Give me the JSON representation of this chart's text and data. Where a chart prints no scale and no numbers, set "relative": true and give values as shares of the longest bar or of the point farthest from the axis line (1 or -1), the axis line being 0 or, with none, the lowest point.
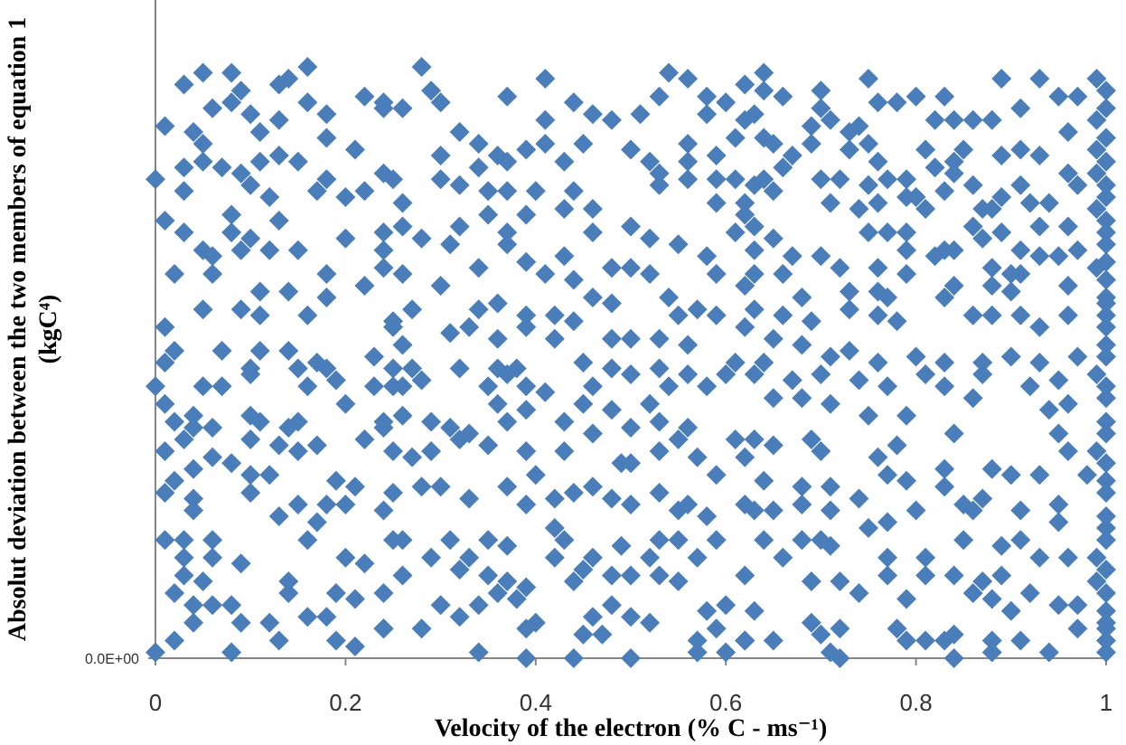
{
  "chart_data": {
    "type": "scatter",
    "xlabel": "Velocity of the electron (% C - ms⁻¹)",
    "ylabel": "Absolut deviation between the two members of equation 1\n(kgC⁴)",
    "relative": true,
    "xlim": [
      0,
      1
    ],
    "xticks": [
      0,
      0.2,
      0.4,
      0.6,
      0.8,
      1
    ],
    "annotations": [
      "0.0E+00"
    ],
    "marker": "diamond",
    "series": [
      {
        "color": "#4a7ebb",
        "x": [
          0.03,
          0.05,
          0.08,
          0.09,
          0.06,
          0.08,
          0.01,
          0.04,
          0.05,
          0.1,
          0.11,
          0.13,
          0.13,
          0.14,
          0.16,
          0.16,
          0.18,
          0.18,
          0.21,
          0.22,
          0.24,
          0.0,
          0.03,
          0.03,
          0.05,
          0.07,
          0.09,
          0.11,
          0.13,
          0.15,
          0.12,
          0.1,
          0.01,
          0.03,
          0.08,
          0.08,
          0.1,
          0.13,
          0.17,
          0.18,
          0.2,
          0.22,
          0.24,
          0.05,
          0.06,
          0.02,
          0.06,
          0.09,
          0.12,
          0.15,
          0.2,
          0.18,
          0.22,
          0.24,
          0.11,
          0.14,
          0.05,
          0.09,
          0.11,
          0.16,
          0.18,
          0.01,
          0.02,
          0.07,
          0.11,
          0.14,
          0.17,
          0.18,
          0.23,
          0.25,
          0.01,
          0.1,
          0.0,
          0.05,
          0.07,
          0.1,
          0.15,
          0.16,
          0.19,
          0.2,
          0.23,
          0.25,
          0.01,
          0.02,
          0.04,
          0.06,
          0.01,
          0.03,
          0.04,
          0.1,
          0.11,
          0.1,
          0.14,
          0.15,
          0.13,
          0.15,
          0.17,
          0.22,
          0.24,
          0.06,
          0.08,
          0.1,
          0.12,
          0.1,
          0.04,
          0.01,
          0.02,
          0.04,
          0.04,
          0.13,
          0.15,
          0.17,
          0.18,
          0.16,
          0.19,
          0.21,
          0.2,
          0.24,
          0.01,
          0.03,
          0.06,
          0.03,
          0.06,
          0.09,
          0.03,
          0.05,
          0.02,
          0.14,
          0.14,
          0.2,
          0.22,
          0.19,
          0.21,
          0.24,
          0.04,
          0.06,
          0.08,
          0.09,
          0.04,
          0.12,
          0.13,
          0.16,
          0.18,
          0.24,
          0.02,
          0.0,
          0.08,
          0.19,
          0.21,
          0.28,
          0.24,
          0.26,
          0.29,
          0.3,
          0.37,
          0.41,
          0.41,
          0.44,
          0.46,
          0.48,
          0.51,
          0.53,
          0.54,
          0.56,
          0.58,
          0.6,
          0.62,
          0.62,
          0.58,
          0.3,
          0.32,
          0.34,
          0.36,
          0.37,
          0.39,
          0.41,
          0.43,
          0.45,
          0.5,
          0.52,
          0.56,
          0.56,
          0.59,
          0.61,
          0.64,
          0.25,
          0.3,
          0.32,
          0.34,
          0.35,
          0.37,
          0.4,
          0.44,
          0.46,
          0.53,
          0.53,
          0.56,
          0.59,
          0.61,
          0.63,
          0.26,
          0.24,
          0.26,
          0.28,
          0.32,
          0.35,
          0.37,
          0.39,
          0.43,
          0.46,
          0.5,
          0.52,
          0.55,
          0.59,
          0.61,
          0.62,
          0.24,
          0.31,
          0.34,
          0.37,
          0.39,
          0.43,
          0.48,
          0.5,
          0.52,
          0.59,
          0.62,
          0.26,
          0.3,
          0.41,
          0.44,
          0.46,
          0.54,
          0.58,
          0.25,
          0.27,
          0.34,
          0.36,
          0.39,
          0.42,
          0.44,
          0.48,
          0.55,
          0.57,
          0.59,
          0.62,
          0.26,
          0.31,
          0.33,
          0.36,
          0.39,
          0.42,
          0.48,
          0.5,
          0.53,
          0.56,
          0.61,
          0.32,
          0.36,
          0.38,
          0.45,
          0.48,
          0.53,
          0.25,
          0.27,
          0.26,
          0.28,
          0.35,
          0.37,
          0.39,
          0.41,
          0.46,
          0.5,
          0.52,
          0.54,
          0.56,
          0.58,
          0.6,
          0.24,
          0.26,
          0.29,
          0.31,
          0.33,
          0.36,
          0.37,
          0.39,
          0.43,
          0.45,
          0.48,
          0.5,
          0.53,
          0.55,
          0.56,
          0.61,
          0.25,
          0.27,
          0.29,
          0.32,
          0.35,
          0.39,
          0.4,
          0.43,
          0.46,
          0.49,
          0.5,
          0.53,
          0.57,
          0.59,
          0.62,
          0.25,
          0.28,
          0.3,
          0.33,
          0.37,
          0.39,
          0.42,
          0.44,
          0.46,
          0.48,
          0.5,
          0.53,
          0.55,
          0.56,
          0.58,
          0.62,
          0.25,
          0.26,
          0.29,
          0.31,
          0.33,
          0.35,
          0.37,
          0.42,
          0.43,
          0.42,
          0.46,
          0.49,
          0.52,
          0.53,
          0.55,
          0.57,
          0.59,
          0.26,
          0.32,
          0.35,
          0.37,
          0.39,
          0.44,
          0.45,
          0.48,
          0.5,
          0.53,
          0.55,
          0.3,
          0.32,
          0.34,
          0.36,
          0.38,
          0.4,
          0.46,
          0.48,
          0.5,
          0.52,
          0.58,
          0.6,
          0.24,
          0.28,
          0.39,
          0.45,
          0.47,
          0.57,
          0.59,
          0.62,
          0.34,
          0.39,
          0.44,
          0.5,
          0.57,
          0.6,
          0.64,
          0.64,
          0.66,
          0.63,
          0.7,
          0.7,
          0.75,
          0.76,
          0.78,
          0.8,
          0.83,
          0.82,
          0.84,
          0.86,
          0.89,
          0.88,
          0.91,
          0.93,
          0.95,
          0.97,
          0.99,
          0.96,
          0.99,
          0.69,
          0.71,
          0.73,
          0.74,
          0.75,
          0.65,
          0.67,
          0.69,
          0.73,
          0.76,
          0.81,
          0.82,
          0.84,
          0.85,
          0.89,
          0.91,
          0.93,
          0.99,
          0.99,
          0.64,
          0.66,
          0.7,
          0.72,
          0.75,
          0.77,
          0.79,
          0.8,
          0.83,
          0.84,
          0.86,
          0.89,
          0.91,
          0.96,
          0.97,
          1,
          0.62,
          0.65,
          0.71,
          0.74,
          0.76,
          0.79,
          0.81,
          0.87,
          0.88,
          0.92,
          0.94,
          0.99,
          0.63,
          0.65,
          0.75,
          0.77,
          0.79,
          0.83,
          0.84,
          0.86,
          0.87,
          0.89,
          0.91,
          0.93,
          0.96,
          1,
          0.63,
          0.67,
          0.7,
          0.72,
          0.76,
          0.79,
          0.82,
          0.88,
          0.9,
          0.93,
          0.95,
          0.97,
          0.99,
          0.63,
          0.66,
          0.73,
          0.76,
          0.77,
          0.79,
          0.84,
          0.83,
          0.88,
          0.9,
          0.91,
          0.96,
          1,
          0.63,
          0.68,
          0.66,
          0.69,
          0.73,
          0.76,
          0.78,
          0.86,
          0.88,
          0.91,
          0.93,
          0.96,
          1,
          0.65,
          0.68,
          0.71,
          0.73,
          0.76,
          0.8,
          0.83,
          0.87,
          0.9,
          0.93,
          0.97,
          1,
          0.64,
          0.63,
          0.67,
          0.7,
          0.74,
          0.77,
          0.81,
          0.83,
          0.87,
          0.92,
          0.95,
          0.99,
          0.65,
          0.68,
          0.71,
          0.75,
          0.79,
          0.84,
          0.86,
          0.94,
          0.96,
          1,
          0.63,
          0.65,
          0.69,
          0.7,
          0.76,
          0.78,
          0.83,
          0.88,
          0.9,
          0.93,
          0.95,
          0.96,
          0.99,
          0.98,
          0.64,
          0.68,
          0.71,
          0.74,
          0.77,
          0.79,
          0.83,
          0.85,
          0.87,
          0.91,
          0.95,
          1,
          0.63,
          0.65,
          0.68,
          0.71,
          0.77,
          0.8,
          0.86,
          0.91,
          0.95,
          1,
          0.64,
          0.68,
          0.7,
          0.75,
          0.81,
          0.85,
          0.89,
          0.93,
          0.96,
          0.99,
          0.66,
          0.71,
          0.77,
          0.77,
          0.81,
          0.84,
          0.87,
          0.89,
          0.99,
          0.62,
          0.69,
          0.72,
          0.74,
          0.79,
          0.86,
          0.88,
          0.9,
          0.92,
          0.95,
          0.97,
          1,
          0.63,
          0.69,
          0.7,
          0.72,
          0.78,
          0.83,
          0.84,
          0.88,
          0.91,
          0.97,
          1,
          0.62,
          0.65,
          0.71,
          0.72,
          0.81,
          0.84,
          0.88,
          0.94,
          1,
          0.79,
          1,
          1,
          1,
          1,
          1,
          1,
          1,
          1,
          1,
          1,
          1,
          1,
          1,
          1,
          1,
          1,
          1,
          1,
          1,
          1,
          1,
          1,
          1
        ],
        "values": [
          0.97,
          0.99,
          0.99,
          0.96,
          0.93,
          0.94,
          0.9,
          0.89,
          0.87,
          0.92,
          0.89,
          0.91,
          0.97,
          0.98,
          1,
          0.94,
          0.92,
          0.88,
          0.86,
          0.95,
          0.93,
          0.81,
          0.83,
          0.79,
          0.84,
          0.83,
          0.82,
          0.84,
          0.85,
          0.84,
          0.78,
          0.8,
          0.74,
          0.72,
          0.75,
          0.72,
          0.71,
          0.74,
          0.79,
          0.81,
          0.78,
          0.79,
          0.82,
          0.69,
          0.68,
          0.65,
          0.65,
          0.69,
          0.69,
          0.69,
          0.71,
          0.65,
          0.63,
          0.66,
          0.62,
          0.62,
          0.59,
          0.59,
          0.58,
          0.58,
          0.61,
          0.56,
          0.52,
          0.52,
          0.52,
          0.52,
          0.5,
          0.49,
          0.51,
          0.56,
          0.5,
          0.49,
          0.46,
          0.46,
          0.46,
          0.48,
          0.49,
          0.46,
          0.47,
          0.43,
          0.46,
          0.46,
          0.43,
          0.4,
          0.41,
          0.39,
          0.35,
          0.37,
          0.39,
          0.41,
          0.4,
          0.37,
          0.39,
          0.4,
          0.36,
          0.35,
          0.36,
          0.37,
          0.39,
          0.34,
          0.33,
          0.31,
          0.31,
          0.28,
          0.32,
          0.28,
          0.3,
          0.27,
          0.25,
          0.24,
          0.26,
          0.23,
          0.26,
          0.2,
          0.3,
          0.29,
          0.26,
          0.25,
          0.2,
          0.2,
          0.2,
          0.17,
          0.17,
          0.16,
          0.14,
          0.13,
          0.11,
          0.13,
          0.11,
          0.17,
          0.16,
          0.11,
          0.1,
          0.11,
          0.09,
          0.09,
          0.09,
          0.06,
          0.06,
          0.06,
          0.03,
          0.07,
          0.07,
          0.05,
          0.03,
          0.01,
          0.01,
          0.03,
          0.02,
          1,
          0.94,
          0.93,
          0.96,
          0.94,
          0.95,
          0.98,
          0.91,
          0.94,
          0.92,
          0.91,
          0.92,
          0.95,
          0.99,
          0.98,
          0.95,
          0.94,
          0.97,
          0.91,
          0.92,
          0.85,
          0.89,
          0.87,
          0.85,
          0.84,
          0.86,
          0.87,
          0.84,
          0.87,
          0.86,
          0.84,
          0.87,
          0.84,
          0.85,
          0.88,
          0.88,
          0.81,
          0.81,
          0.8,
          0.83,
          0.79,
          0.79,
          0.79,
          0.79,
          0.76,
          0.8,
          0.82,
          0.81,
          0.81,
          0.81,
          0.8,
          0.77,
          0.72,
          0.73,
          0.71,
          0.73,
          0.75,
          0.72,
          0.75,
          0.76,
          0.72,
          0.73,
          0.71,
          0.7,
          0.77,
          0.72,
          0.75,
          0.69,
          0.7,
          0.66,
          0.7,
          0.67,
          0.68,
          0.66,
          0.66,
          0.65,
          0.65,
          0.63,
          0.65,
          0.63,
          0.65,
          0.64,
          0.61,
          0.61,
          0.68,
          0.57,
          0.59,
          0.59,
          0.6,
          0.58,
          0.58,
          0.57,
          0.6,
          0.58,
          0.59,
          0.58,
          0.56,
          0.53,
          0.55,
          0.56,
          0.54,
          0.56,
          0.54,
          0.54,
          0.54,
          0.54,
          0.53,
          0.5,
          0.49,
          0.49,
          0.49,
          0.5,
          0.49,
          0.49,
          0.49,
          0.49,
          0.46,
          0.47,
          0.46,
          0.48,
          0.46,
          0.45,
          0.46,
          0.48,
          0.43,
          0.46,
          0.48,
          0.46,
          0.48,
          0.4,
          0.41,
          0.4,
          0.39,
          0.38,
          0.43,
          0.4,
          0.42,
          0.4,
          0.43,
          0.42,
          0.39,
          0.4,
          0.37,
          0.39,
          0.37,
          0.35,
          0.34,
          0.35,
          0.37,
          0.36,
          0.35,
          0.31,
          0.35,
          0.38,
          0.33,
          0.33,
          0.35,
          0.34,
          0.31,
          0.34,
          0.28,
          0.29,
          0.29,
          0.27,
          0.29,
          0.26,
          0.27,
          0.28,
          0.29,
          0.27,
          0.26,
          0.28,
          0.25,
          0.26,
          0.24,
          0.26,
          0.2,
          0.2,
          0.17,
          0.2,
          0.17,
          0.2,
          0.19,
          0.22,
          0.2,
          0.17,
          0.17,
          0.19,
          0.17,
          0.2,
          0.2,
          0.17,
          0.2,
          0.14,
          0.15,
          0.14,
          0.13,
          0.12,
          0.13,
          0.15,
          0.14,
          0.14,
          0.14,
          0.13,
          0.09,
          0.07,
          0.09,
          0.11,
          0.1,
          0.06,
          0.07,
          0.09,
          0.07,
          0.06,
          0.08,
          0.09,
          0.05,
          0.05,
          0.05,
          0.04,
          0.04,
          0.03,
          0.05,
          0.03,
          0.01,
          0.0,
          0.0,
          0.0,
          0.01,
          0.01,
          0.99,
          0.96,
          0.95,
          0.92,
          0.96,
          0.93,
          0.98,
          0.94,
          0.94,
          0.95,
          0.95,
          0.91,
          0.91,
          0.91,
          0.98,
          0.91,
          0.93,
          0.98,
          0.95,
          0.95,
          0.98,
          0.89,
          0.91,
          0.9,
          0.91,
          0.89,
          0.9,
          0.87,
          0.87,
          0.85,
          0.87,
          0.86,
          0.84,
          0.86,
          0.83,
          0.84,
          0.86,
          0.85,
          0.86,
          0.85,
          0.86,
          0.82,
          0.81,
          0.83,
          0.81,
          0.81,
          0.8,
          0.81,
          0.81,
          0.78,
          0.79,
          0.82,
          0.8,
          0.78,
          0.8,
          0.82,
          0.8,
          0.78,
          0.77,
          0.79,
          0.77,
          0.76,
          0.77,
          0.78,
          0.76,
          0.76,
          0.76,
          0.77,
          0.77,
          0.76,
          0.73,
          0.71,
          0.72,
          0.72,
          0.72,
          0.69,
          0.69,
          0.73,
          0.71,
          0.72,
          0.69,
          0.73,
          0.73,
          0.72,
          0.69,
          0.68,
          0.68,
          0.66,
          0.66,
          0.69,
          0.68,
          0.66,
          0.65,
          0.68,
          0.68,
          0.69,
          0.66,
          0.65,
          0.65,
          0.62,
          0.62,
          0.61,
          0.65,
          0.63,
          0.61,
          0.63,
          0.62,
          0.65,
          0.63,
          0.61,
          0.59,
          0.61,
          0.58,
          0.57,
          0.59,
          0.58,
          0.57,
          0.58,
          0.58,
          0.58,
          0.56,
          0.58,
          0.58,
          0.54,
          0.53,
          0.51,
          0.52,
          0.5,
          0.51,
          0.5,
          0.5,
          0.51,
          0.5,
          0.51,
          0.53,
          0.5,
          0.48,
          0.47,
          0.48,
          0.47,
          0.46,
          0.48,
          0.46,
          0.48,
          0.46,
          0.47,
          0.48,
          0.44,
          0.44,
          0.43,
          0.41,
          0.41,
          0.38,
          0.44,
          0.42,
          0.43,
          0.4,
          0.37,
          0.36,
          0.37,
          0.35,
          0.34,
          0.36,
          0.32,
          0.32,
          0.31,
          0.31,
          0.38,
          0.35,
          0.35,
          0.31,
          0.3,
          0.29,
          0.29,
          0.27,
          0.31,
          0.3,
          0.29,
          0.26,
          0.27,
          0.25,
          0.26,
          0.28,
          0.25,
          0.25,
          0.26,
          0.25,
          0.23,
          0.25,
          0.25,
          0.2,
          0.23,
          0.22,
          0.2,
          0.2,
          0.2,
          0.22,
          0.17,
          0.2,
          0.19,
          0.17,
          0.17,
          0.17,
          0.17,
          0.19,
          0.17,
          0.14,
          0.14,
          0.14,
          0.13,
          0.14,
          0.13,
          0.14,
          0.13,
          0.13,
          0.11,
          0.1,
          0.11,
          0.1,
          0.08,
          0.11,
          0.09,
          0.09,
          0.08,
          0.08,
          0.06,
          0.04,
          0.05,
          0.05,
          0.03,
          0.04,
          0.03,
          0.03,
          0.05,
          0.03,
          0.03,
          0.03,
          0.01,
          0.0,
          0.03,
          0.0,
          0.01,
          0.01,
          0.01,
          0.03,
          0.96,
          0.93,
          0.88,
          0.84,
          0.8,
          0.74,
          0.7,
          0.67,
          0.64,
          0.6,
          0.56,
          0.51,
          0.46,
          0.44,
          0.38,
          0.33,
          0.3,
          0.24,
          0.2,
          0.15,
          0.11,
          0.06,
          0.05
        ]
      }
    ]
  }
}
